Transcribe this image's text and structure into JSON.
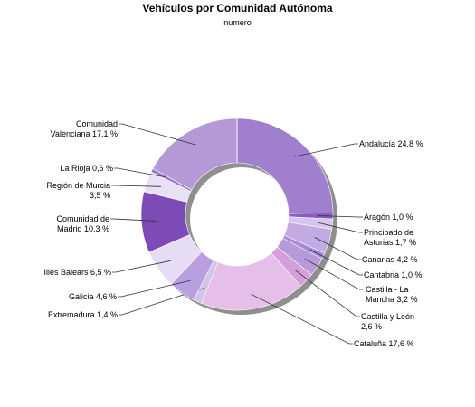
{
  "chart_data": {
    "type": "pie",
    "style": "donut",
    "title": "Vehículos por Comunidad Autónoma",
    "subtitle": "numero",
    "slices": [
      {
        "name": "Andalucía",
        "value": 24.8,
        "label": [
          "Andalucía 24,8 %"
        ],
        "color": "#a07fcf"
      },
      {
        "name": "Aragón",
        "value": 1.0,
        "label": [
          "Aragón 1,0 %"
        ],
        "color": "#8a5cc2"
      },
      {
        "name": "Principado de Asturias",
        "value": 1.7,
        "label": [
          "Principado de",
          "Asturias 1,7 %"
        ],
        "color": "#d6c5ee"
      },
      {
        "name": "Canarias",
        "value": 4.2,
        "label": [
          "Canarias 4,2 %"
        ],
        "color": "#c3aae3"
      },
      {
        "name": "Cantabria",
        "value": 1.0,
        "label": [
          "Cantabria 1,0 %"
        ],
        "color": "#a689d8"
      },
      {
        "name": "Castilla - La Mancha",
        "value": 3.2,
        "label": [
          "Castilla - La",
          "Mancha 3,2 %"
        ],
        "color": "#b79ad9"
      },
      {
        "name": "Castilla y León",
        "value": 2.6,
        "label": [
          "Castilla y León",
          "2,6 %"
        ],
        "color": "#d49fdb"
      },
      {
        "name": "Cataluña",
        "value": 17.6,
        "label": [
          "Cataluña 17,6 %"
        ],
        "color": "#e6bfe8"
      },
      {
        "name": "Extremadura",
        "value": 1.4,
        "label": [
          "Extremadura 1,4 %"
        ],
        "color": "#d2c2ec"
      },
      {
        "name": "Galicia",
        "value": 4.6,
        "label": [
          "Galicia 4,6 %"
        ],
        "color": "#b99ee0"
      },
      {
        "name": "Illes Balears",
        "value": 6.5,
        "label": [
          "Illes Balears 6,5 %"
        ],
        "color": "#e6dcf3"
      },
      {
        "name": "Comunidad de Madrid",
        "value": 10.3,
        "label": [
          "Comunidad de",
          "Madrid 10,3 %"
        ],
        "color": "#7d4bb5"
      },
      {
        "name": "Región de Murcia",
        "value": 3.5,
        "label": [
          "Región de Murcia",
          "3,5 %"
        ],
        "color": "#e8e0f4"
      },
      {
        "name": "La Rioja",
        "value": 0.6,
        "label": [
          "La Rioja 0,6 %"
        ],
        "color": "#9a7bc7"
      },
      {
        "name": "Comunidad Valenciana",
        "value": 17.1,
        "label": [
          "Comunidad",
          "Valenciana 17,1 %"
        ],
        "color": "#b39ad6"
      }
    ]
  }
}
